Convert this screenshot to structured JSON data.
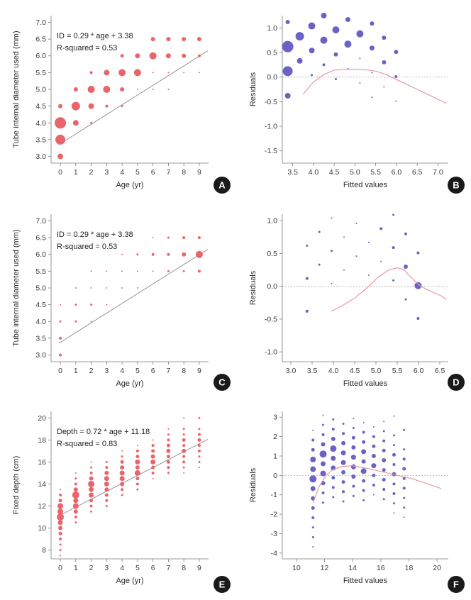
{
  "colors": {
    "red": "#e9646b",
    "blue": "#6a62c4",
    "fit": "#8c8c8c",
    "loess": "#e89aa2",
    "zero": "#b0b0b0",
    "axis": "#7a7a7a",
    "badge": "#1a1a1a"
  },
  "chart_data": [
    {
      "panel": "A",
      "type": "scatter",
      "variant": "age",
      "xlabel": "Age (yr)",
      "ylabel": "Tube internal diameter used (mm)",
      "xlim": [
        -0.6,
        9.6
      ],
      "ylim": [
        2.8,
        7.2
      ],
      "xticks": [
        0,
        1,
        2,
        3,
        4,
        5,
        6,
        7,
        8,
        9
      ],
      "xtick_labels": [
        "0",
        "1",
        "2",
        "3",
        "4",
        "5",
        "6",
        "7",
        "8",
        "9"
      ],
      "yticks": [
        3.0,
        3.5,
        4.0,
        4.5,
        5.0,
        5.5,
        6.0,
        6.5,
        7.0
      ],
      "ytick_labels": [
        "3.0",
        "3.5",
        "4.0",
        "4.5",
        "5.0",
        "5.5",
        "6.0",
        "6.5",
        "7.0"
      ],
      "annotation": [
        "ID = 0.29 * age + 3.38",
        "R-squared = 0.53"
      ],
      "fit": {
        "slope": 0.29,
        "intercept": 3.38
      },
      "points": [
        [
          0,
          3.0,
          4
        ],
        [
          0,
          3.5,
          7
        ],
        [
          0,
          4.0,
          8
        ],
        [
          0,
          4.5,
          3
        ],
        [
          1,
          4.0,
          4
        ],
        [
          1,
          4.5,
          6
        ],
        [
          1,
          5.0,
          3
        ],
        [
          2,
          4.0,
          1.5
        ],
        [
          2,
          4.5,
          4
        ],
        [
          2,
          5.0,
          5
        ],
        [
          2,
          5.5,
          2
        ],
        [
          3,
          4.5,
          2
        ],
        [
          3,
          5.0,
          5
        ],
        [
          3,
          5.5,
          4
        ],
        [
          4,
          4.5,
          1.5
        ],
        [
          4,
          5.0,
          3
        ],
        [
          4,
          5.5,
          5
        ],
        [
          4,
          6.0,
          2.5
        ],
        [
          5,
          5.0,
          1
        ],
        [
          5,
          5.5,
          5
        ],
        [
          5,
          6.0,
          3.5
        ],
        [
          6,
          5.0,
          1
        ],
        [
          6,
          5.5,
          1
        ],
        [
          6,
          6.0,
          5
        ],
        [
          6,
          6.5,
          3
        ],
        [
          7,
          5.0,
          1
        ],
        [
          7,
          5.5,
          1
        ],
        [
          7,
          6.0,
          3.5
        ],
        [
          7,
          6.5,
          3
        ],
        [
          8,
          5.5,
          1
        ],
        [
          8,
          6.0,
          3
        ],
        [
          8,
          6.5,
          3
        ],
        [
          9,
          5.5,
          1
        ],
        [
          9,
          6.0,
          2
        ],
        [
          9,
          6.5,
          3
        ]
      ]
    },
    {
      "panel": "B",
      "type": "scatter",
      "variant": "residual",
      "xlabel": "Fitted values",
      "ylabel": "Residuals",
      "xlim": [
        3.25,
        7.25
      ],
      "ylim": [
        -1.75,
        1.25
      ],
      "xticks": [
        3.5,
        4.0,
        4.5,
        5.0,
        5.5,
        6.0,
        6.5,
        7.0
      ],
      "xtick_labels": [
        "3.5",
        "4.0",
        "4.5",
        "5.0",
        "5.5",
        "6.0",
        "6.5",
        "7.0"
      ],
      "yticks": [
        -1.5,
        -1.0,
        -0.5,
        0.0,
        0.5,
        1.0
      ],
      "ytick_labels": [
        "-1.5",
        "-1.0",
        "-0.5",
        "0.0",
        "0.5",
        "1.0"
      ],
      "slope": 0.29,
      "intercept": 3.38,
      "size_from": "A",
      "loess": [
        [
          3.75,
          -0.35
        ],
        [
          4.0,
          -0.1
        ],
        [
          4.25,
          0.05
        ],
        [
          4.5,
          0.14
        ],
        [
          4.75,
          0.16
        ],
        [
          5.0,
          0.16
        ],
        [
          5.25,
          0.15
        ],
        [
          5.5,
          0.12
        ],
        [
          5.75,
          0.05
        ],
        [
          6.0,
          -0.05
        ],
        [
          6.25,
          -0.15
        ],
        [
          6.5,
          -0.25
        ],
        [
          6.75,
          -0.35
        ],
        [
          7.0,
          -0.45
        ],
        [
          7.2,
          -0.53
        ]
      ]
    },
    {
      "panel": "C",
      "type": "scatter",
      "variant": "age",
      "xlabel": "Age (yr)",
      "ylabel": "Tube internal diameter used (mm)",
      "xlim": [
        -0.6,
        9.6
      ],
      "ylim": [
        2.8,
        7.2
      ],
      "xticks": [
        0,
        1,
        2,
        3,
        4,
        5,
        6,
        7,
        8,
        9
      ],
      "xtick_labels": [
        "0",
        "1",
        "2",
        "3",
        "4",
        "5",
        "6",
        "7",
        "8",
        "9"
      ],
      "yticks": [
        3.0,
        3.5,
        4.0,
        4.5,
        5.0,
        5.5,
        6.0,
        6.5,
        7.0
      ],
      "ytick_labels": [
        "3.0",
        "3.5",
        "4.0",
        "4.5",
        "5.0",
        "5.5",
        "6.0",
        "6.5",
        "7.0"
      ],
      "annotation": [
        "ID = 0.29 * age + 3.38",
        "R-squared = 0.53"
      ],
      "fit": {
        "slope": 0.29,
        "intercept": 3.38
      },
      "points": [
        [
          0,
          3.0,
          2
        ],
        [
          0,
          3.5,
          2
        ],
        [
          0,
          4.0,
          1.5
        ],
        [
          0,
          4.5,
          1
        ],
        [
          1,
          4.0,
          1.5
        ],
        [
          1,
          4.5,
          1.5
        ],
        [
          1,
          5.0,
          1
        ],
        [
          2,
          4.0,
          1
        ],
        [
          2,
          4.5,
          1.5
        ],
        [
          2,
          5.0,
          1
        ],
        [
          2,
          5.5,
          1
        ],
        [
          3,
          4.5,
          1
        ],
        [
          3,
          5.0,
          1
        ],
        [
          3,
          5.5,
          1
        ],
        [
          4,
          5.0,
          1
        ],
        [
          4,
          5.5,
          1
        ],
        [
          4,
          6.0,
          1
        ],
        [
          5,
          5.0,
          1
        ],
        [
          5,
          5.5,
          1
        ],
        [
          5,
          6.0,
          1.5
        ],
        [
          6,
          5.5,
          1
        ],
        [
          6,
          6.0,
          2
        ],
        [
          6,
          6.5,
          1
        ],
        [
          7,
          5.5,
          1.5
        ],
        [
          7,
          6.0,
          2
        ],
        [
          7,
          6.5,
          1.5
        ],
        [
          8,
          5.5,
          1.5
        ],
        [
          8,
          6.0,
          3
        ],
        [
          8,
          6.5,
          2
        ],
        [
          9,
          5.5,
          2
        ],
        [
          9,
          6.0,
          5
        ],
        [
          9,
          6.5,
          2
        ]
      ]
    },
    {
      "panel": "D",
      "type": "scatter",
      "variant": "residual",
      "xlabel": "Fitted values",
      "ylabel": "Residuals",
      "xlim": [
        2.8,
        6.7
      ],
      "ylim": [
        -1.15,
        1.1
      ],
      "xticks": [
        3.0,
        3.5,
        4.0,
        4.5,
        5.0,
        5.5,
        6.0,
        6.5
      ],
      "xtick_labels": [
        "3.0",
        "3.5",
        "4.0",
        "4.5",
        "5.0",
        "5.5",
        "6.0",
        "6.5"
      ],
      "yticks": [
        -1.0,
        -0.5,
        0.0,
        0.5,
        1.0
      ],
      "ytick_labels": [
        "-1.0",
        "-0.5",
        "0.0",
        "0.5",
        "1.0"
      ],
      "slope": 0.29,
      "intercept": 3.38,
      "size_from": "C",
      "loess": [
        [
          3.95,
          -0.38
        ],
        [
          4.2,
          -0.3
        ],
        [
          4.5,
          -0.18
        ],
        [
          4.8,
          -0.02
        ],
        [
          5.05,
          0.14
        ],
        [
          5.3,
          0.25
        ],
        [
          5.5,
          0.28
        ],
        [
          5.65,
          0.26
        ],
        [
          5.85,
          0.12
        ],
        [
          6.05,
          0.0
        ],
        [
          6.3,
          -0.08
        ],
        [
          6.55,
          -0.15
        ],
        [
          6.65,
          -0.2
        ]
      ]
    },
    {
      "panel": "E",
      "type": "scatter",
      "variant": "age",
      "xlabel": "Age (yr)",
      "ylabel": "Fixed depth (cm)",
      "xlim": [
        -0.6,
        9.6
      ],
      "ylim": [
        7.2,
        20.6
      ],
      "xticks": [
        0,
        1,
        2,
        3,
        4,
        5,
        6,
        7,
        8,
        9
      ],
      "xtick_labels": [
        "0",
        "1",
        "2",
        "3",
        "4",
        "5",
        "6",
        "7",
        "8",
        "9"
      ],
      "yticks": [
        8,
        10,
        12,
        14,
        16,
        18,
        20
      ],
      "ytick_labels": [
        "8",
        "10",
        "12",
        "14",
        "16",
        "18",
        "20"
      ],
      "annotation": [
        "Depth = 0.72 * age + 11.18",
        "R-squared = 0.83"
      ],
      "fit": {
        "slope": 0.72,
        "intercept": 11.18
      },
      "points": [
        [
          0,
          7.5,
          1
        ],
        [
          0,
          8,
          1.5
        ],
        [
          0,
          8.5,
          1.5
        ],
        [
          0,
          9,
          2
        ],
        [
          0,
          9.5,
          2.5
        ],
        [
          0,
          10,
          3
        ],
        [
          0,
          10.5,
          3.5
        ],
        [
          0,
          11,
          5
        ],
        [
          0,
          11.5,
          4
        ],
        [
          0,
          12,
          4
        ],
        [
          0,
          12.5,
          2.5
        ],
        [
          0,
          13,
          2
        ],
        [
          0,
          13.5,
          1
        ],
        [
          1,
          10.5,
          1.5
        ],
        [
          1,
          11,
          2
        ],
        [
          1,
          11.5,
          3
        ],
        [
          1,
          12,
          4
        ],
        [
          1,
          12.5,
          3.5
        ],
        [
          1,
          13,
          5
        ],
        [
          1,
          13.5,
          3
        ],
        [
          1,
          14,
          2
        ],
        [
          1,
          14.5,
          1.5
        ],
        [
          1,
          15,
          1
        ],
        [
          2,
          11.5,
          1.5
        ],
        [
          2,
          12,
          2
        ],
        [
          2,
          12.5,
          2.5
        ],
        [
          2,
          13,
          3.5
        ],
        [
          2,
          13.5,
          3.5
        ],
        [
          2,
          14,
          4.5
        ],
        [
          2,
          14.5,
          3
        ],
        [
          2,
          15,
          2
        ],
        [
          2,
          15.5,
          1.5
        ],
        [
          2,
          16,
          1
        ],
        [
          3,
          12,
          1.5
        ],
        [
          3,
          12.5,
          2
        ],
        [
          3,
          13,
          2.5
        ],
        [
          3,
          13.5,
          3
        ],
        [
          3,
          14,
          3.5
        ],
        [
          3,
          14.5,
          3.5
        ],
        [
          3,
          15,
          3
        ],
        [
          3,
          15.5,
          2
        ],
        [
          3,
          16,
          1.5
        ],
        [
          4,
          13,
          1.5
        ],
        [
          4,
          13.5,
          2
        ],
        [
          4,
          14,
          3
        ],
        [
          4,
          14.5,
          3.5
        ],
        [
          4,
          15,
          3.5
        ],
        [
          4,
          15.5,
          3
        ],
        [
          4,
          16,
          2.5
        ],
        [
          4,
          16.5,
          1.5
        ],
        [
          4,
          17,
          1
        ],
        [
          5,
          13.5,
          1.5
        ],
        [
          5,
          14,
          2
        ],
        [
          5,
          14.5,
          2.5
        ],
        [
          5,
          15,
          4
        ],
        [
          5,
          15.5,
          3
        ],
        [
          5,
          16,
          3.5
        ],
        [
          5,
          16.5,
          2.5
        ],
        [
          5,
          17,
          2
        ],
        [
          5,
          17.5,
          1
        ],
        [
          6,
          14.5,
          1
        ],
        [
          6,
          15,
          2
        ],
        [
          6,
          15.5,
          2.5
        ],
        [
          6,
          16,
          3.5
        ],
        [
          6,
          16.5,
          3
        ],
        [
          6,
          17,
          2.5
        ],
        [
          6,
          17.5,
          2
        ],
        [
          6,
          18,
          1
        ],
        [
          7,
          15,
          1.5
        ],
        [
          7,
          15.5,
          2
        ],
        [
          7,
          16,
          2.5
        ],
        [
          7,
          16.5,
          2.5
        ],
        [
          7,
          17,
          3
        ],
        [
          7,
          17.5,
          2.5
        ],
        [
          7,
          18,
          2
        ],
        [
          7,
          18.5,
          1.5
        ],
        [
          7,
          19,
          1
        ],
        [
          8,
          15,
          1
        ],
        [
          8,
          15.5,
          1.5
        ],
        [
          8,
          16,
          2
        ],
        [
          8,
          16.5,
          2
        ],
        [
          8,
          17,
          3
        ],
        [
          8,
          17.5,
          2
        ],
        [
          8,
          18,
          2.5
        ],
        [
          8,
          18.5,
          1.5
        ],
        [
          8,
          19,
          1.5
        ],
        [
          8,
          20,
          1
        ],
        [
          9,
          15.5,
          1
        ],
        [
          9,
          16,
          1.5
        ],
        [
          9,
          16.5,
          1.5
        ],
        [
          9,
          17,
          2
        ],
        [
          9,
          17.5,
          2
        ],
        [
          9,
          18,
          2.5
        ],
        [
          9,
          18.5,
          2
        ],
        [
          9,
          19,
          1.5
        ],
        [
          9,
          20,
          1.5
        ]
      ]
    },
    {
      "panel": "F",
      "type": "scatter",
      "variant": "residual",
      "xlabel": "Fitted values",
      "ylabel": "Residuals",
      "xlim": [
        9.0,
        20.8
      ],
      "ylim": [
        -4.3,
        3.3
      ],
      "xticks": [
        10,
        12,
        14,
        16,
        18,
        20
      ],
      "xtick_labels": [
        "10",
        "12",
        "14",
        "16",
        "18",
        "20"
      ],
      "yticks": [
        -4,
        -3,
        -2,
        -1,
        0,
        1,
        2,
        3
      ],
      "ytick_labels": [
        "-4",
        "-3",
        "-2",
        "-1",
        "0",
        "1",
        "2",
        "3"
      ],
      "slope": 0.72,
      "intercept": 11.18,
      "size_from": "E",
      "loess": [
        [
          11.2,
          -1.4
        ],
        [
          11.6,
          -0.6
        ],
        [
          12.1,
          0.0
        ],
        [
          12.6,
          0.3
        ],
        [
          13.2,
          0.45
        ],
        [
          13.9,
          0.5
        ],
        [
          14.6,
          0.42
        ],
        [
          15.4,
          0.3
        ],
        [
          16.3,
          0.15
        ],
        [
          17.2,
          0.0
        ],
        [
          18.1,
          -0.15
        ],
        [
          19.0,
          -0.35
        ],
        [
          19.8,
          -0.55
        ],
        [
          20.3,
          -0.68
        ]
      ]
    }
  ],
  "badges": [
    "A",
    "B",
    "C",
    "D",
    "E",
    "F"
  ]
}
